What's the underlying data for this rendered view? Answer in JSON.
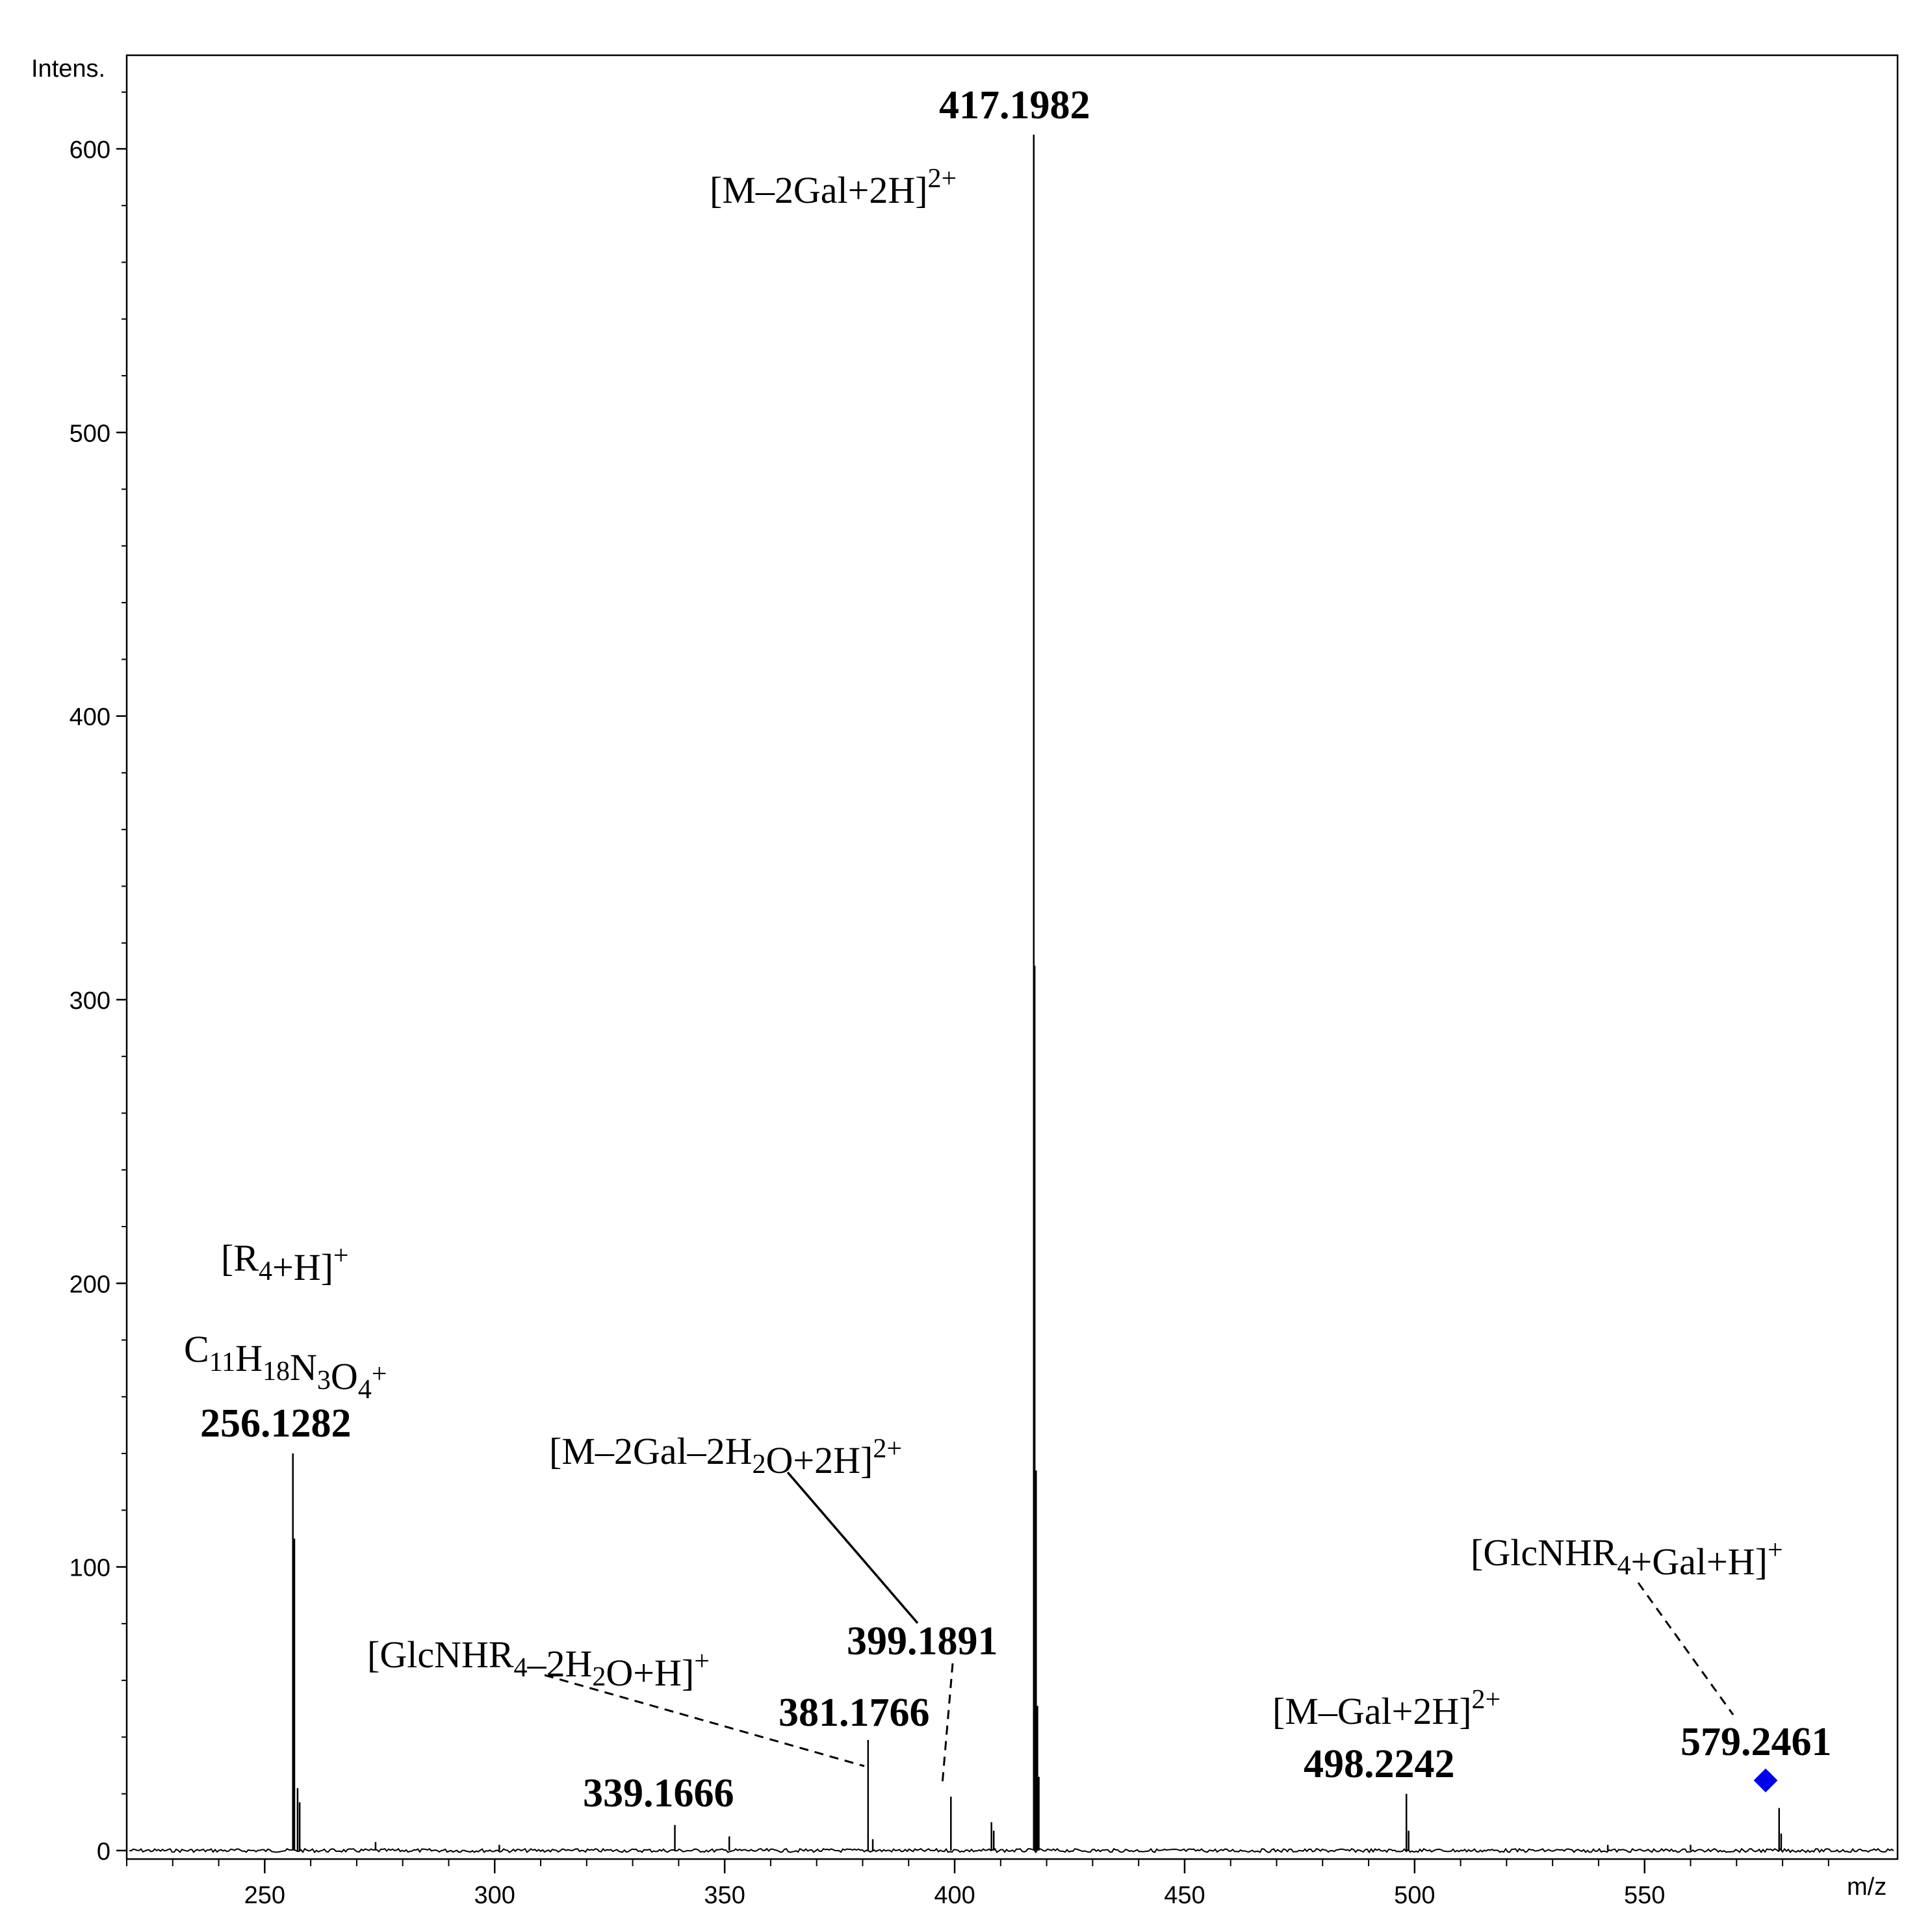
{
  "chart_data": {
    "type": "line",
    "subtype": "mass-spectrum",
    "ylabel": "Intens.",
    "xlabel": "m/z",
    "xlim": [
      220,
      605
    ],
    "ylim": [
      -3,
      633
    ],
    "x_ticks": [
      250,
      300,
      350,
      400,
      450,
      500,
      550
    ],
    "y_ticks": [
      0,
      100,
      200,
      300,
      400,
      500,
      600
    ],
    "peaks": [
      {
        "mz": 256.13,
        "intensity": 140,
        "label": "256.1282"
      },
      {
        "mz": 256.45,
        "intensity": 110
      },
      {
        "mz": 257.15,
        "intensity": 22
      },
      {
        "mz": 257.6,
        "intensity": 17
      },
      {
        "mz": 274.1,
        "intensity": 3
      },
      {
        "mz": 301.0,
        "intensity": 2
      },
      {
        "mz": 339.17,
        "intensity": 9,
        "label": "339.1666"
      },
      {
        "mz": 351.0,
        "intensity": 5
      },
      {
        "mz": 381.18,
        "intensity": 39,
        "label": "381.1766"
      },
      {
        "mz": 382.2,
        "intensity": 4
      },
      {
        "mz": 399.19,
        "intensity": 19,
        "label": "399.1891"
      },
      {
        "mz": 408.0,
        "intensity": 10
      },
      {
        "mz": 408.5,
        "intensity": 7
      },
      {
        "mz": 417.2,
        "intensity": 605,
        "label": "417.1982"
      },
      {
        "mz": 417.4,
        "intensity": 312
      },
      {
        "mz": 417.7,
        "intensity": 134
      },
      {
        "mz": 418.0,
        "intensity": 51
      },
      {
        "mz": 418.3,
        "intensity": 26
      },
      {
        "mz": 498.22,
        "intensity": 20,
        "label": "498.2242"
      },
      {
        "mz": 498.7,
        "intensity": 7
      },
      {
        "mz": 542.0,
        "intensity": 2
      },
      {
        "mz": 560.0,
        "intensity": 2
      },
      {
        "mz": 579.25,
        "intensity": 15,
        "label": "579.2461"
      },
      {
        "mz": 579.7,
        "intensity": 6
      }
    ],
    "peak_labels": [
      {
        "mz": 256.13,
        "text": "256.1282"
      },
      {
        "mz": 339.17,
        "text": "339.1666"
      },
      {
        "mz": 381.18,
        "text": "381.1766"
      },
      {
        "mz": 399.19,
        "text": "399.1891"
      },
      {
        "mz": 417.2,
        "text": "417.1982"
      },
      {
        "mz": 498.22,
        "text": "498.2242"
      },
      {
        "mz": 579.25,
        "text": "579.2461"
      }
    ],
    "annotations": [
      {
        "mz": 417.2,
        "text": "[M–2Gal+2H]2+"
      },
      {
        "mz": 256.13,
        "text": "[R4+H]+"
      },
      {
        "mz": 256.13,
        "text": "C11H18N3O4+"
      },
      {
        "mz": 399.19,
        "text": "[M–2Gal–2H2O+2H]2+",
        "connector": "solid"
      },
      {
        "mz": 381.18,
        "text": "[GlcNHR4–2H2O+H]+",
        "connector": "dashed"
      },
      {
        "mz": 498.22,
        "text": "[M–Gal+2H]2+"
      },
      {
        "mz": 579.25,
        "text": "[GlcNHR4+Gal+H]+",
        "connector": "dashed",
        "marker": "diamond"
      }
    ],
    "marker_color": "#0000ee"
  }
}
